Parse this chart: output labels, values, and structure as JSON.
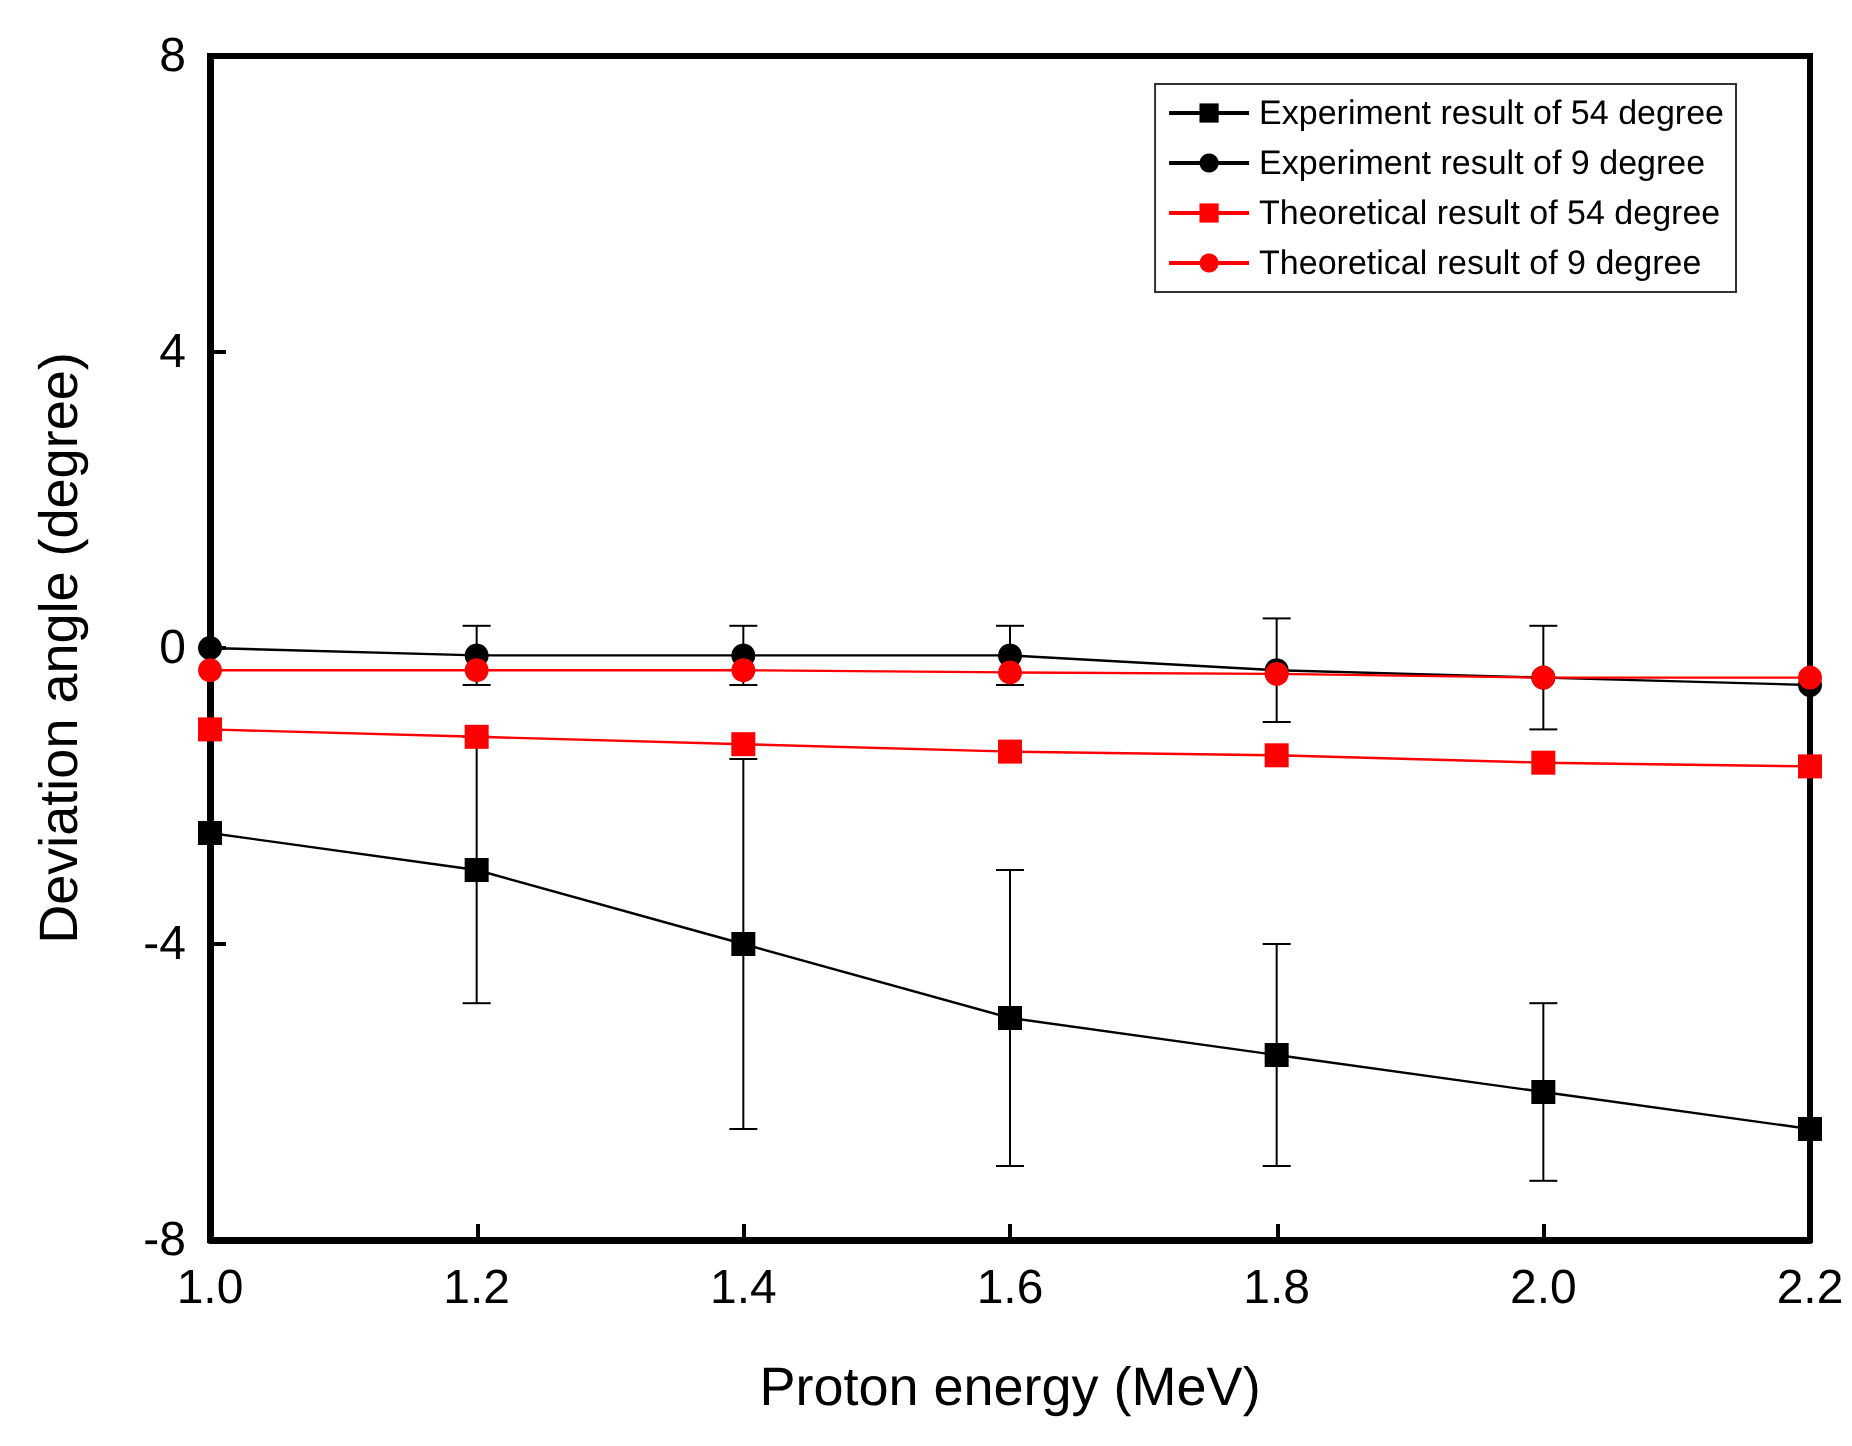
{
  "chart_data": {
    "type": "line",
    "xlabel": "Proton energy (MeV)",
    "ylabel": "Deviation angle (degree)",
    "x": [
      1.0,
      1.2,
      1.4,
      1.6,
      1.8,
      2.0,
      2.2
    ],
    "xlim": [
      1.0,
      2.2
    ],
    "xticks": [
      {
        "value": 1.0,
        "label": "1.0"
      },
      1.2,
      1.4,
      1.6,
      1.8,
      {
        "value": 2.0,
        "label": "2.0"
      },
      2.2
    ],
    "ylim": [
      -8,
      8
    ],
    "yticks": [
      -8,
      -4,
      0,
      4,
      8
    ],
    "grid": false,
    "legend": "top right",
    "series": [
      {
        "name": "Experiment result of 54 degree",
        "color": "#000000",
        "marker": "square",
        "values": [
          -2.5,
          -3,
          -4,
          -5,
          -5.5,
          -6,
          -6.5
        ],
        "errors": [
          null,
          1.8,
          2.5,
          2,
          1.5,
          1.2,
          null
        ]
      },
      {
        "name": "Experiment result of 9 degree",
        "color": "#000000",
        "marker": "circle",
        "values": [
          0,
          -0.1,
          -0.1,
          -0.1,
          -0.3,
          -0.4,
          -0.5
        ],
        "errors": [
          null,
          0.4,
          0.4,
          0.4,
          0.7,
          0.7,
          null
        ]
      },
      {
        "name": "Theoretical result of 54 degree",
        "color": "#ff0000",
        "marker": "square",
        "values": [
          -1.1,
          -1.2,
          -1.3,
          -1.4,
          -1.45,
          -1.55,
          -1.6
        ]
      },
      {
        "name": "Theoretical result of 9 degree",
        "color": "#ff0000",
        "marker": "circle",
        "values": [
          -0.3,
          -0.3,
          -0.3,
          -0.33,
          -0.35,
          -0.4,
          -0.4
        ]
      }
    ]
  }
}
